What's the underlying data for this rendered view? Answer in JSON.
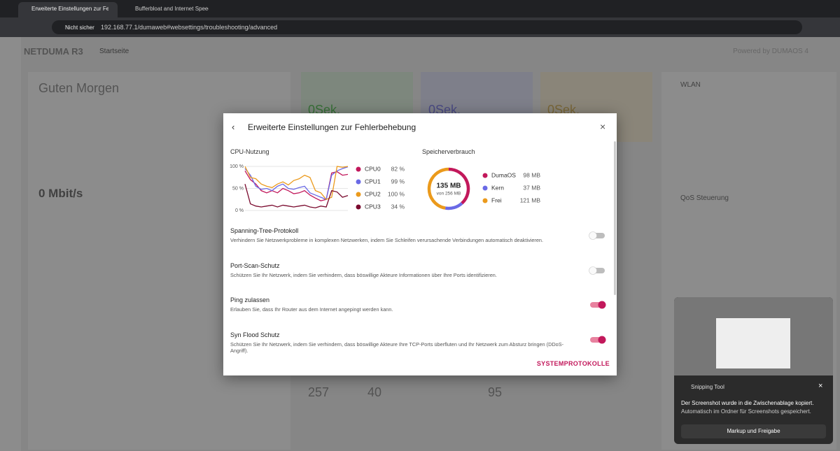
{
  "browser": {
    "tabs": [
      "Erweiterte Einstellungen zur Feh",
      "Bufferbloat and Internet Speed"
    ],
    "security": "Nicht sicher",
    "url": "192.168.77.1/dumaweb#websettings/troubleshooting/advanced"
  },
  "background": {
    "brand": "NETDUMA R3",
    "nav": "Startseite",
    "powered": "Powered by DUMAOS 4",
    "greeting": "Guten Morgen",
    "throughput": "0 Mbit/s",
    "pings": [
      "0Sek.",
      "0Sek.",
      "0Sek."
    ],
    "stats": [
      "257",
      "40",
      "95"
    ],
    "wifi": "WLAN",
    "qos": "QoS Steuerung"
  },
  "modal": {
    "title": "Erweiterte Einstellungen zur Fehlerbehebung",
    "cpu": {
      "title": "CPU-Nutzung",
      "ylim": [
        0,
        100
      ],
      "yticks": [
        {
          "value": 100,
          "label": "100 %"
        },
        {
          "value": 50,
          "label": "50 %"
        },
        {
          "value": 0,
          "label": "0 %"
        }
      ],
      "series": [
        {
          "name": "CPU0",
          "color": "#c2185b",
          "values": [
            90,
            70,
            60,
            45,
            40,
            45,
            40,
            50,
            45,
            38,
            40,
            45,
            35,
            28,
            22,
            25,
            85,
            88,
            80,
            82
          ],
          "current": {
            "value": 82,
            "label": "82 %"
          }
        },
        {
          "name": "CPU1",
          "color": "#6a6ae6",
          "values": [
            95,
            80,
            55,
            48,
            50,
            45,
            55,
            60,
            50,
            48,
            52,
            55,
            40,
            35,
            30,
            25,
            80,
            90,
            95,
            99
          ],
          "current": {
            "value": 99,
            "label": "99 %"
          }
        },
        {
          "name": "CPU2",
          "color": "#eb9a1c",
          "values": [
            100,
            75,
            72,
            60,
            55,
            52,
            60,
            65,
            58,
            68,
            72,
            80,
            75,
            45,
            40,
            25,
            30,
            100,
            98,
            100
          ],
          "current": {
            "value": 100,
            "label": "100 %"
          }
        },
        {
          "name": "CPU3",
          "color": "#7a0a2e",
          "values": [
            60,
            15,
            10,
            8,
            10,
            12,
            8,
            12,
            10,
            8,
            10,
            12,
            8,
            6,
            10,
            8,
            45,
            42,
            30,
            34
          ],
          "current": {
            "value": 34,
            "label": "34 %"
          }
        }
      ]
    },
    "memory": {
      "title": "Speicherverbrauch",
      "total": "135 MB",
      "capacity": "von 256 MB",
      "items": [
        {
          "name": "DumaOS",
          "color": "#c2185b",
          "value": 98,
          "label": "98 MB"
        },
        {
          "name": "Kern",
          "color": "#6a6ae6",
          "value": 37,
          "label": "37 MB"
        },
        {
          "name": "Frei",
          "color": "#eb9a1c",
          "value": 121,
          "label": "121 MB"
        }
      ]
    },
    "settings": [
      {
        "title": "Spanning-Tree-Protokoll",
        "description": "Verhindern Sie Netzwerkprobleme in komplexen Netzwerken, indem Sie Schleifen verursachende Verbindungen automatisch deaktivieren.",
        "enabled": false
      },
      {
        "title": "Port-Scan-Schutz",
        "description": "Schützen Sie Ihr Netzwerk, indem Sie verhindern, dass böswillige Akteure Informationen über Ihre Ports identifizieren.",
        "enabled": false
      },
      {
        "title": "Ping zulassen",
        "description": "Erlauben Sie, dass Ihr Router aus dem Internet angepingt werden kann.",
        "enabled": true
      },
      {
        "title": "Syn Flood Schutz",
        "description": "Schützen Sie Ihr Netzwerk, indem Sie verhindern, dass böswillige Akteure Ihre TCP-Ports überfluten und Ihr Netzwerk zum Absturz bringen (DDoS-Angriff).",
        "enabled": true
      }
    ],
    "button": "SYSTEMPROTOKOLLE"
  },
  "notification": {
    "app": "Snipping Tool",
    "message": "Der Screenshot wurde in die Zwischenablage kopiert.",
    "detail": "Automatisch im Ordner für Screenshots gespeichert.",
    "action": "Markup und Freigabe"
  }
}
